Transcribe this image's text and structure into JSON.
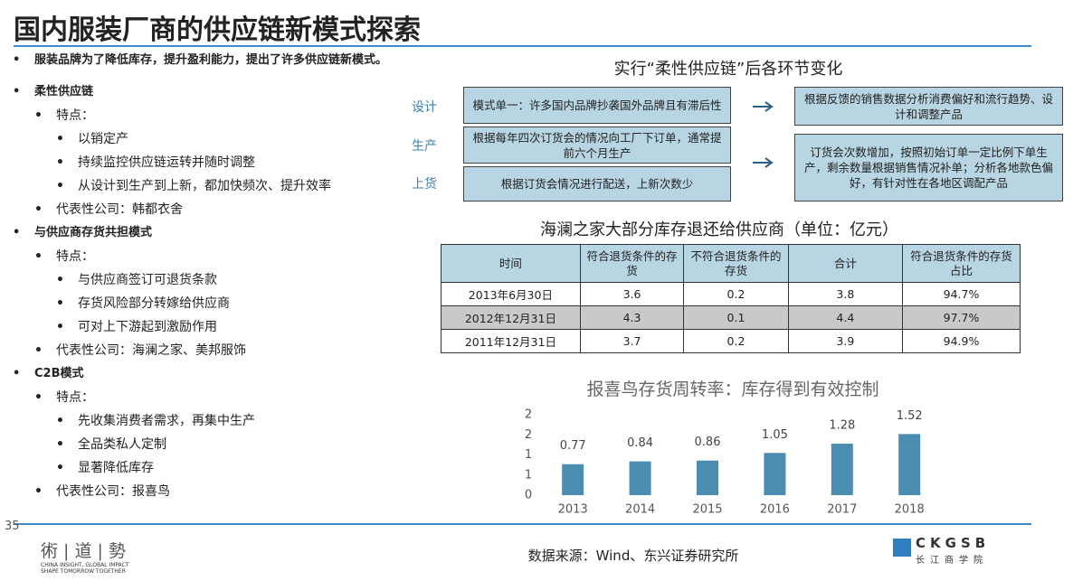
{
  "header": {
    "title": "国内服装厂商的供应链新模式探索"
  },
  "bullets": [
    "服装品牌为了降低库存，提升盈利能力，提出了许多供应链新模式。",
    "柔性供应链",
    "特点：",
    "以销定产",
    "持续监控供应链运转并随时调整",
    "从设计到生产到上新，都加快频次、提升效率",
    "代表性公司：韩都衣舍",
    "与供应商存货共担模式",
    "特点：",
    "与供应商签订可退货条款",
    "存货风险部分转嫁给供应商",
    "可对上下游起到激励作用",
    "代表性公司：海澜之家、美邦服饰",
    "C2B模式",
    "特点：",
    "先收集消费者需求，再集中生产",
    "全品类私人定制",
    "显著降低库存",
    "代表性公司：报喜鸟"
  ],
  "diagram": {
    "title": "实行“柔性供应链”后各环节变化",
    "stages": [
      "设计",
      "生产",
      "上货"
    ],
    "before": [
      "模式单一：许多国内品牌抄袭国外品牌且有滞后性",
      "根据每年四次订货会的情况向工厂下订单，通常提前六个月生产",
      "根据订货会情况进行配送，上新次数少"
    ],
    "after": [
      "根据反馈的销售数据分析消费偏好和流行趋势、设计和调整产品",
      "订货会次数增加，按照初始订单一定比例下单生产，剩余数量根据销售情况补单；分析各地款色偏好，有针对性在各地区调配产品"
    ]
  },
  "table": {
    "title": "海澜之家大部分库存退还给供应商（单位：亿元）",
    "header": [
      "时间",
      "符合退货条件的存货",
      "不符合退货条件的存货",
      "合计",
      "符合退货条件的存货占比"
    ],
    "rows": [
      [
        "2013年6月30日",
        "3.6",
        "0.2",
        "3.8",
        "94.7%"
      ],
      [
        "2012年12月31日",
        "4.3",
        "0.1",
        "4.4",
        "97.7%"
      ],
      [
        "2011年12月31日",
        "3.7",
        "0.2",
        "3.9",
        "94.9%"
      ]
    ]
  },
  "chart_data": {
    "type": "bar",
    "title": "报喜鸟存货周转率：库存得到有效控制",
    "categories": [
      "2013",
      "2014",
      "2015",
      "2016",
      "2017",
      "2018"
    ],
    "values": [
      0.77,
      0.84,
      0.86,
      1.05,
      1.28,
      1.52
    ],
    "color": "#4a8db0",
    "ylim": [
      0,
      2
    ],
    "yticks": [
      0,
      {
        "value": 0.5,
        "label": "1"
      },
      1,
      {
        "value": 1.5,
        "label": "2"
      },
      2
    ]
  },
  "footer": {
    "page": "35",
    "source": "数据来源：Wind、东兴证券研究所",
    "logo_left": "術 | 道 | 勢",
    "tagline1": "CHINA INSIGHT, GLOBAL IMPACT",
    "tagline2": "SHAPE TOMORROW TOGETHER",
    "logo_right": "CKGSB",
    "logo_right_cn": "长江商学院"
  }
}
